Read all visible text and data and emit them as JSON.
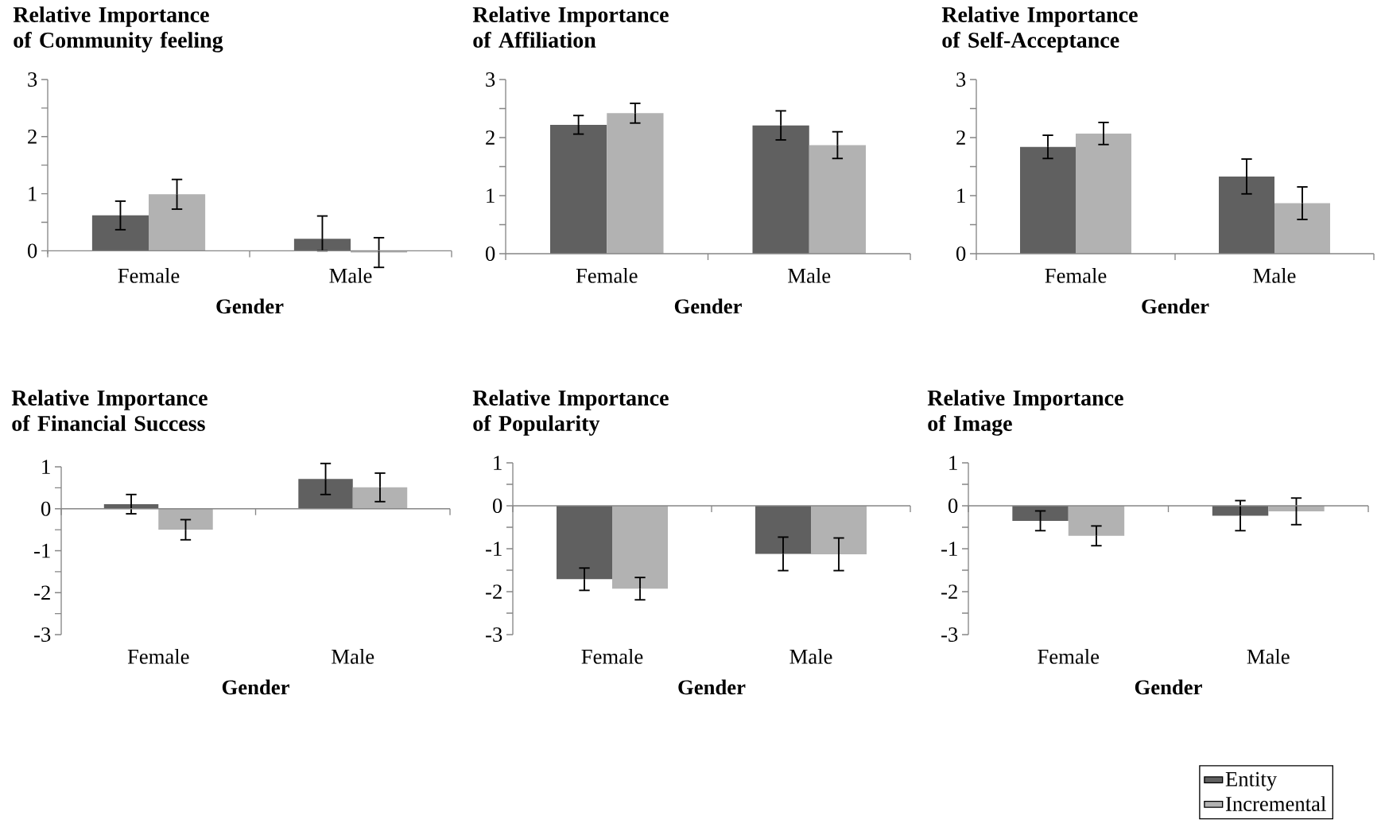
{
  "chart_data": [
    {
      "type": "bar",
      "title": "Relative Importance of Community feeling",
      "xlabel": "Gender",
      "categories": [
        "Female",
        "Male"
      ],
      "series": [
        {
          "color": "#606060",
          "values": [
            0.62,
            0.21
          ],
          "errors": [
            0.25,
            [
              0,
              0.61
            ]
          ]
        },
        {
          "color": "#b2b2b2",
          "values": [
            0.99,
            -0.03
          ],
          "errors": [
            0.26,
            0.26
          ]
        }
      ],
      "ylim": [
        -0.05,
        3
      ],
      "yticks": [
        0,
        {
          "value": 0.5,
          "label": null
        },
        1,
        {
          "value": 1.5,
          "label": null
        },
        2,
        {
          "value": 2.5,
          "label": null
        },
        3
      ]
    },
    {
      "type": "bar",
      "title": "Relative Importance of Affiliation",
      "xlabel": "Gender",
      "categories": [
        "Female",
        "Male"
      ],
      "series": [
        {
          "color": "#606060",
          "values": [
            2.22,
            2.21
          ],
          "errors": [
            0.16,
            0.25
          ]
        },
        {
          "color": "#b2b2b2",
          "values": [
            2.42,
            1.87
          ],
          "errors": [
            0.17,
            0.23
          ]
        }
      ],
      "ylim": [
        0,
        3
      ],
      "yticks": [
        0,
        {
          "value": 0.5,
          "label": null
        },
        1,
        {
          "value": 1.5,
          "label": null
        },
        2,
        {
          "value": 2.5,
          "label": null
        },
        3
      ]
    },
    {
      "type": "bar",
      "title": "Relative Importance of Self-Acceptance",
      "xlabel": "Gender",
      "categories": [
        "Female",
        "Male"
      ],
      "series": [
        {
          "color": "#606060",
          "values": [
            1.84,
            1.33
          ],
          "errors": [
            0.2,
            0.3
          ]
        },
        {
          "color": "#b2b2b2",
          "values": [
            2.07,
            0.87
          ],
          "errors": [
            0.19,
            0.28
          ]
        }
      ],
      "ylim": [
        0,
        3
      ],
      "yticks": [
        0,
        {
          "value": 0.5,
          "label": null
        },
        1,
        {
          "value": 1.5,
          "label": null
        },
        2,
        {
          "value": 2.5,
          "label": null
        },
        3
      ]
    },
    {
      "type": "bar",
      "title": "Relative Importance of Financial Success",
      "xlabel": "Gender",
      "categories": [
        "Female",
        "Male"
      ],
      "series": [
        {
          "color": "#606060",
          "values": [
            0.11,
            0.71
          ],
          "errors": [
            0.23,
            0.37
          ]
        },
        {
          "color": "#b2b2b2",
          "values": [
            -0.5,
            0.51
          ],
          "errors": [
            0.24,
            0.34
          ]
        }
      ],
      "ylim": [
        -3,
        1
      ],
      "yticks": [
        -3,
        {
          "value": -2.5,
          "label": null
        },
        -2,
        {
          "value": -1.5,
          "label": null
        },
        -1,
        {
          "value": -0.5,
          "label": null
        },
        0,
        {
          "value": 0.5,
          "label": null
        },
        1
      ]
    },
    {
      "type": "bar",
      "title": "Relative Importance of Popularity",
      "xlabel": "Gender",
      "categories": [
        "Female",
        "Male"
      ],
      "series": [
        {
          "color": "#606060",
          "values": [
            -1.71,
            -1.12
          ],
          "errors": [
            0.26,
            0.39
          ]
        },
        {
          "color": "#b2b2b2",
          "values": [
            -1.93,
            -1.13
          ],
          "errors": [
            0.26,
            0.38
          ]
        }
      ],
      "ylim": [
        -3,
        1
      ],
      "yticks": [
        -3,
        {
          "value": -2.5,
          "label": null
        },
        -2,
        {
          "value": -1.5,
          "label": null
        },
        -1,
        {
          "value": -0.5,
          "label": null
        },
        0,
        {
          "value": 0.5,
          "label": null
        },
        1
      ]
    },
    {
      "type": "bar",
      "title": "Relative Importance of Image",
      "xlabel": "Gender",
      "categories": [
        "Female",
        "Male"
      ],
      "series": [
        {
          "name": "Entity",
          "color": "#606060",
          "values": [
            -0.35,
            -0.23
          ],
          "errors": [
            0.23,
            0.35
          ]
        },
        {
          "name": "Incremental",
          "color": "#b2b2b2",
          "values": [
            -0.7,
            -0.13
          ],
          "errors": [
            0.23,
            0.31
          ]
        }
      ],
      "ylim": [
        -3,
        1
      ],
      "yticks": [
        -3,
        {
          "value": -2.5,
          "label": null
        },
        -2,
        {
          "value": -1.5,
          "label": null
        },
        -1,
        {
          "value": -0.5,
          "label": null
        },
        0,
        {
          "value": 0.5,
          "label": null
        },
        1
      ],
      "legend": "bottom right"
    }
  ]
}
